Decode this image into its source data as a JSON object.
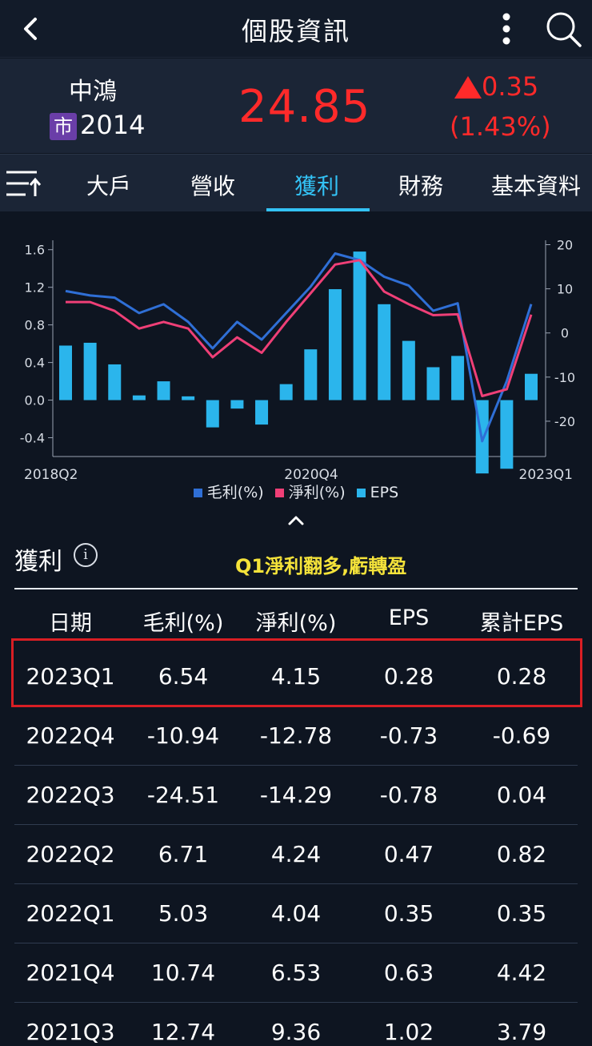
{
  "header": {
    "title": "個股資訊"
  },
  "stock": {
    "name": "中鴻",
    "market_badge": "市",
    "code": "2014",
    "price": "24.85",
    "change": "0.35",
    "change_pct": "(1.43%)",
    "up_color": "#ff2a2a"
  },
  "tabs": [
    {
      "label": "大戶"
    },
    {
      "label": "營收"
    },
    {
      "label": "獲利",
      "active": true
    },
    {
      "label": "財務"
    },
    {
      "label": "基本資料"
    }
  ],
  "chart_data": {
    "type": "bar+line",
    "categories": [
      "2018Q2",
      "2018Q3",
      "2018Q4",
      "2019Q1",
      "2019Q2",
      "2019Q3",
      "2019Q4",
      "2020Q1",
      "2020Q2",
      "2020Q3",
      "2020Q4",
      "2021Q1",
      "2021Q2",
      "2021Q3",
      "2021Q4",
      "2022Q1",
      "2022Q2",
      "2022Q3",
      "2022Q4",
      "2023Q1"
    ],
    "x_tick_labels": [
      "2018Q2",
      "2020Q4",
      "2023Q1"
    ],
    "left_axis": {
      "ylim": [
        -0.6,
        1.7
      ],
      "ticks": [
        "1.6",
        "1.2",
        "0.8",
        "0.4",
        "0.0",
        "-0.4"
      ]
    },
    "right_axis": {
      "ylim": [
        -28,
        21
      ],
      "ticks": [
        "20",
        "10",
        "0",
        "-10",
        "-20"
      ]
    },
    "series": [
      {
        "name": "毛利(%)",
        "type": "line",
        "axis": "right",
        "color": "#2f6fd6",
        "values": [
          9.5,
          8.5,
          8.0,
          4.5,
          6.5,
          2.5,
          -3.5,
          2.5,
          -1.5,
          4.5,
          10.5,
          18.0,
          16.5,
          12.74,
          10.74,
          5.03,
          6.71,
          -24.51,
          -10.94,
          6.54
        ]
      },
      {
        "name": "淨利(%)",
        "type": "line",
        "axis": "right",
        "color": "#ef3f77",
        "values": [
          7.0,
          7.0,
          5.0,
          1.0,
          2.5,
          1.0,
          -5.5,
          -1.0,
          -4.5,
          2.5,
          9.0,
          15.5,
          16.5,
          9.36,
          6.53,
          4.04,
          4.24,
          -14.29,
          -12.78,
          4.15
        ]
      },
      {
        "name": "EPS",
        "type": "bar",
        "axis": "left",
        "color": "#2bb5ec",
        "values": [
          0.58,
          0.61,
          0.38,
          0.05,
          0.2,
          0.04,
          -0.29,
          -0.09,
          -0.26,
          0.17,
          0.54,
          1.18,
          1.58,
          1.02,
          0.63,
          0.35,
          0.47,
          -0.78,
          -0.73,
          0.28
        ]
      }
    ],
    "grid": false,
    "legend_position": "bottom"
  },
  "section": {
    "title": "獲利",
    "annotation": "Q1淨利翻多,虧轉盈"
  },
  "table": {
    "columns": [
      "日期",
      "毛利(%)",
      "淨利(%)",
      "EPS",
      "累計EPS"
    ],
    "rows": [
      [
        "2023Q1",
        "6.54",
        "4.15",
        "0.28",
        "0.28"
      ],
      [
        "2022Q4",
        "-10.94",
        "-12.78",
        "-0.73",
        "-0.69"
      ],
      [
        "2022Q3",
        "-24.51",
        "-14.29",
        "-0.78",
        "0.04"
      ],
      [
        "2022Q2",
        "6.71",
        "4.24",
        "0.47",
        "0.82"
      ],
      [
        "2022Q1",
        "5.03",
        "4.04",
        "0.35",
        "0.35"
      ],
      [
        "2021Q4",
        "10.74",
        "6.53",
        "0.63",
        "4.42"
      ],
      [
        "2021Q3",
        "12.74",
        "9.36",
        "1.02",
        "3.79"
      ]
    ],
    "highlight_color": "#d91e24"
  }
}
